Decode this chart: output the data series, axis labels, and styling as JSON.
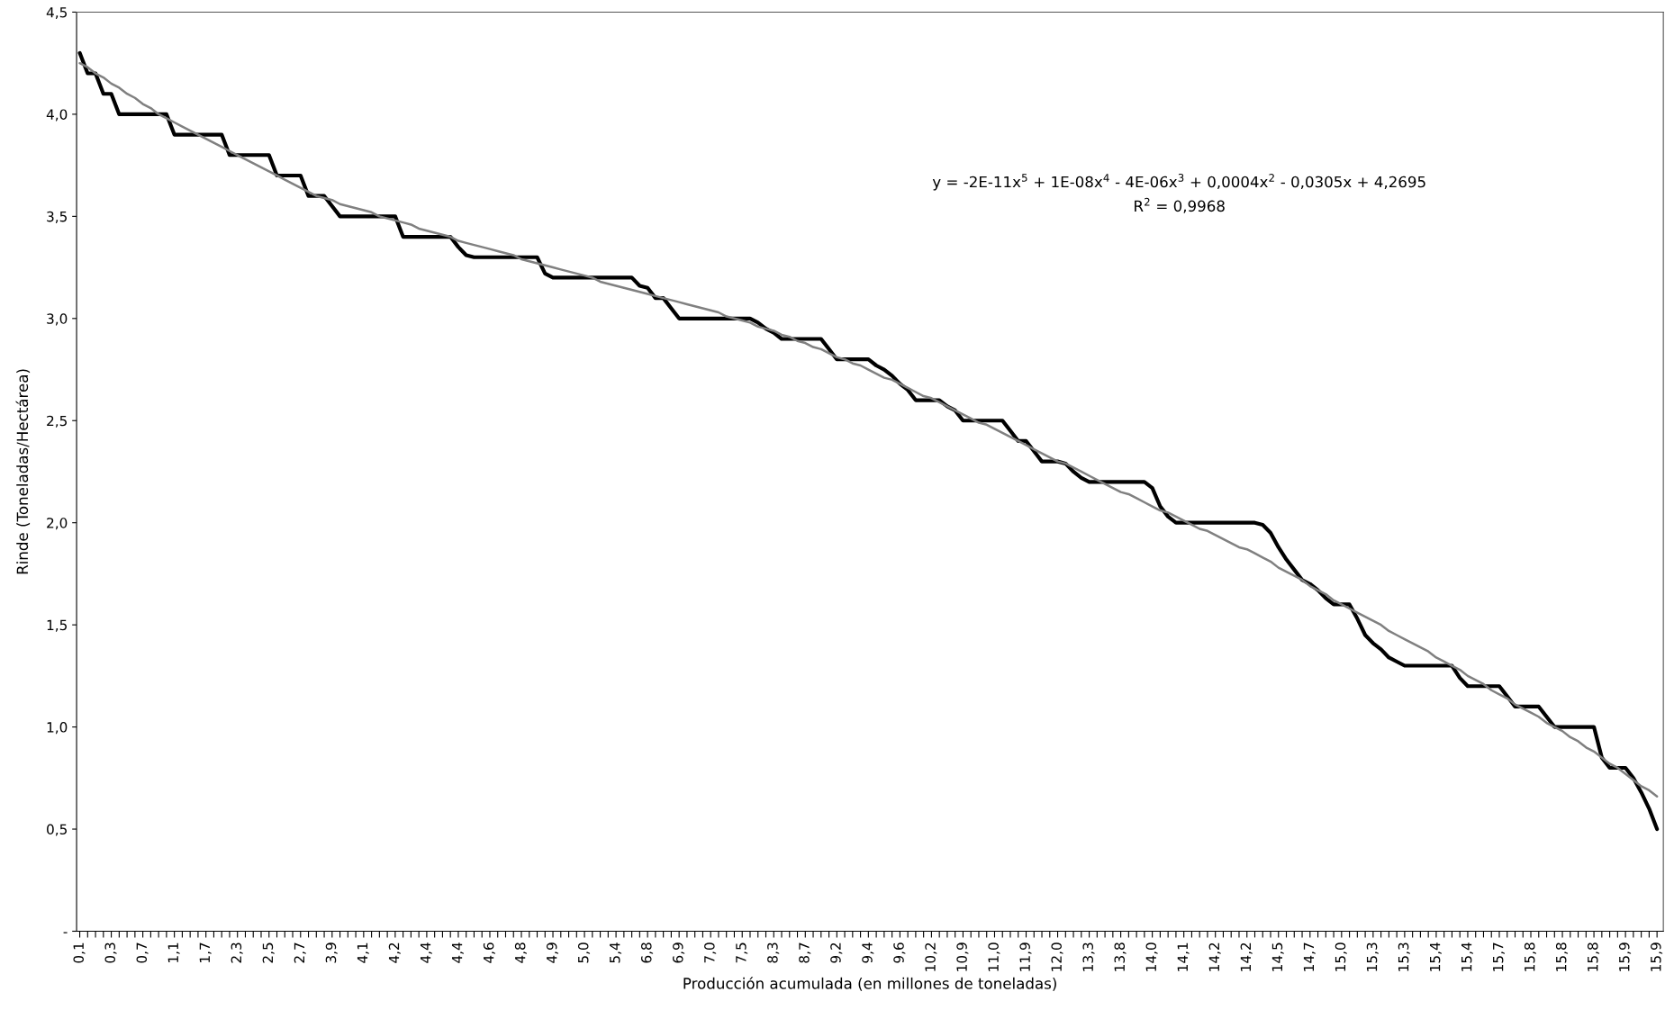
{
  "chart_data": {
    "type": "line",
    "xlabel": "Producción acumulada (en millones de toneladas)",
    "ylabel": "Rinde (Toneladas/Hectárea)",
    "categories": [
      "0,1",
      null,
      null,
      null,
      "0,3",
      null,
      null,
      null,
      "0,7",
      null,
      null,
      null,
      "1,1",
      null,
      null,
      null,
      "1,7",
      null,
      null,
      null,
      "2,3",
      null,
      null,
      null,
      "2,5",
      null,
      null,
      null,
      "2,7",
      null,
      null,
      null,
      "3,9",
      null,
      null,
      null,
      "4,1",
      null,
      null,
      null,
      "4,2",
      null,
      null,
      null,
      "4,4",
      null,
      null,
      null,
      "4,4",
      null,
      null,
      null,
      "4,6",
      null,
      null,
      null,
      "4,8",
      null,
      null,
      null,
      "4,9",
      null,
      null,
      null,
      "5,0",
      null,
      null,
      null,
      "5,4",
      null,
      null,
      null,
      "6,8",
      null,
      null,
      null,
      "6,9",
      null,
      null,
      null,
      "7,0",
      null,
      null,
      null,
      "7,5",
      null,
      null,
      null,
      "8,3",
      null,
      null,
      null,
      "8,7",
      null,
      null,
      null,
      "9,2",
      null,
      null,
      null,
      "9,4",
      null,
      null,
      null,
      "9,6",
      null,
      null,
      null,
      "10,2",
      null,
      null,
      null,
      "10,9",
      null,
      null,
      null,
      "11,0",
      null,
      null,
      null,
      "11,9",
      null,
      null,
      null,
      "12,0",
      null,
      null,
      null,
      "13,3",
      null,
      null,
      null,
      "13,8",
      null,
      null,
      null,
      "14,0",
      null,
      null,
      null,
      "14,1",
      null,
      null,
      null,
      "14,2",
      null,
      null,
      null,
      "14,2",
      null,
      null,
      null,
      "14,5",
      null,
      null,
      null,
      "14,7",
      null,
      null,
      null,
      "15,0",
      null,
      null,
      null,
      "15,3",
      null,
      null,
      null,
      "15,3",
      null,
      null,
      null,
      "15,4",
      null,
      null,
      null,
      "15,4",
      null,
      null,
      null,
      "15,7",
      null,
      null,
      null,
      "15,8",
      null,
      null,
      null,
      "15,8",
      null,
      null,
      null,
      "15,8",
      null,
      null,
      null,
      "15,9",
      null,
      null,
      null,
      "15,9"
    ],
    "series": [
      {
        "color": "#000000",
        "values": [
          4.3,
          4.2,
          4.2,
          4.1,
          4.1,
          4.0,
          4.0,
          4.0,
          4.0,
          4.0,
          4.0,
          4.0,
          3.9,
          3.9,
          3.9,
          3.9,
          3.9,
          3.9,
          3.9,
          3.8,
          3.8,
          3.8,
          3.8,
          3.8,
          3.8,
          3.7,
          3.7,
          3.7,
          3.7,
          3.6,
          3.6,
          3.6,
          3.55,
          3.5,
          3.5,
          3.5,
          3.5,
          3.5,
          3.5,
          3.5,
          3.5,
          3.4,
          3.4,
          3.4,
          3.4,
          3.4,
          3.4,
          3.4,
          3.35,
          3.31,
          3.3,
          3.3,
          3.3,
          3.3,
          3.3,
          3.3,
          3.3,
          3.3,
          3.3,
          3.22,
          3.2,
          3.2,
          3.2,
          3.2,
          3.2,
          3.2,
          3.2,
          3.2,
          3.2,
          3.2,
          3.2,
          3.16,
          3.15,
          3.1,
          3.1,
          3.05,
          3.0,
          3.0,
          3.0,
          3.0,
          3.0,
          3.0,
          3.0,
          3.0,
          3.0,
          3.0,
          2.98,
          2.95,
          2.93,
          2.9,
          2.9,
          2.9,
          2.9,
          2.9,
          2.9,
          2.85,
          2.8,
          2.8,
          2.8,
          2.8,
          2.8,
          2.77,
          2.75,
          2.72,
          2.68,
          2.65,
          2.6,
          2.6,
          2.6,
          2.6,
          2.57,
          2.55,
          2.5,
          2.5,
          2.5,
          2.5,
          2.5,
          2.5,
          2.45,
          2.4,
          2.4,
          2.35,
          2.3,
          2.3,
          2.3,
          2.29,
          2.25,
          2.22,
          2.2,
          2.2,
          2.2,
          2.2,
          2.2,
          2.2,
          2.2,
          2.2,
          2.17,
          2.08,
          2.03,
          2.0,
          2.0,
          2.0,
          2.0,
          2.0,
          2.0,
          2.0,
          2.0,
          2.0,
          2.0,
          2.0,
          1.99,
          1.95,
          1.88,
          1.82,
          1.77,
          1.72,
          1.7,
          1.67,
          1.63,
          1.6,
          1.6,
          1.6,
          1.53,
          1.45,
          1.41,
          1.38,
          1.34,
          1.32,
          1.3,
          1.3,
          1.3,
          1.3,
          1.3,
          1.3,
          1.3,
          1.24,
          1.2,
          1.2,
          1.2,
          1.2,
          1.2,
          1.15,
          1.1,
          1.1,
          1.1,
          1.1,
          1.05,
          1.0,
          1.0,
          1.0,
          1.0,
          1.0,
          1.0,
          0.85,
          0.8,
          0.8,
          0.8,
          0.75,
          0.68,
          0.6,
          0.5
        ]
      },
      {
        "color": "#808080",
        "values": [
          4.25,
          4.23,
          4.2,
          4.18,
          4.15,
          4.13,
          4.1,
          4.08,
          4.05,
          4.03,
          4.0,
          3.98,
          3.96,
          3.94,
          3.92,
          3.9,
          3.88,
          3.86,
          3.84,
          3.82,
          3.8,
          3.78,
          3.76,
          3.74,
          3.72,
          3.7,
          3.68,
          3.66,
          3.64,
          3.62,
          3.6,
          3.59,
          3.58,
          3.56,
          3.55,
          3.54,
          3.53,
          3.52,
          3.5,
          3.49,
          3.48,
          3.47,
          3.46,
          3.44,
          3.43,
          3.42,
          3.41,
          3.4,
          3.38,
          3.37,
          3.36,
          3.35,
          3.34,
          3.33,
          3.32,
          3.31,
          3.29,
          3.28,
          3.27,
          3.26,
          3.25,
          3.24,
          3.23,
          3.22,
          3.21,
          3.2,
          3.18,
          3.17,
          3.16,
          3.15,
          3.14,
          3.13,
          3.12,
          3.11,
          3.1,
          3.09,
          3.08,
          3.07,
          3.06,
          3.05,
          3.04,
          3.03,
          3.01,
          3.0,
          2.99,
          2.98,
          2.96,
          2.95,
          2.94,
          2.92,
          2.91,
          2.89,
          2.88,
          2.86,
          2.85,
          2.83,
          2.81,
          2.8,
          2.78,
          2.77,
          2.75,
          2.73,
          2.71,
          2.7,
          2.68,
          2.66,
          2.64,
          2.62,
          2.61,
          2.59,
          2.57,
          2.55,
          2.53,
          2.51,
          2.49,
          2.48,
          2.46,
          2.44,
          2.42,
          2.4,
          2.38,
          2.36,
          2.34,
          2.32,
          2.3,
          2.29,
          2.27,
          2.25,
          2.23,
          2.21,
          2.19,
          2.17,
          2.15,
          2.14,
          2.12,
          2.1,
          2.08,
          2.06,
          2.05,
          2.03,
          2.01,
          1.99,
          1.97,
          1.96,
          1.94,
          1.92,
          1.9,
          1.88,
          1.87,
          1.85,
          1.83,
          1.81,
          1.78,
          1.76,
          1.74,
          1.72,
          1.69,
          1.67,
          1.65,
          1.62,
          1.6,
          1.58,
          1.56,
          1.54,
          1.52,
          1.5,
          1.47,
          1.45,
          1.43,
          1.41,
          1.39,
          1.37,
          1.34,
          1.32,
          1.3,
          1.28,
          1.25,
          1.23,
          1.21,
          1.18,
          1.16,
          1.14,
          1.11,
          1.09,
          1.07,
          1.05,
          1.02,
          1.0,
          0.98,
          0.95,
          0.93,
          0.9,
          0.88,
          0.85,
          0.82,
          0.8,
          0.77,
          0.74,
          0.71,
          0.69,
          0.66
        ]
      }
    ],
    "ylim": [
      0,
      4.5
    ],
    "yticks": [
      {
        "value": 0,
        "label": "-"
      },
      {
        "value": 0.5,
        "label": "0,5"
      },
      {
        "value": 1,
        "label": "1,0"
      },
      {
        "value": 1.5,
        "label": "1,5"
      },
      {
        "value": 2,
        "label": "2,0"
      },
      {
        "value": 2.5,
        "label": "2,5"
      },
      {
        "value": 3,
        "label": "3,0"
      },
      {
        "value": 3.5,
        "label": "3,5"
      },
      {
        "value": 4,
        "label": "4,0"
      },
      {
        "value": 4.5,
        "label": "4,5"
      }
    ],
    "annotations": [
      "y = -2E-11x$^{5}$ + 1E-08x$^{4}$ - 4E-06x$^{3}$ + 0,0004x$^{2}$ - 0,0305x + 4,2695",
      "R$^{2}$ = 0,9968"
    ],
    "grid": false,
    "legend": false,
    "marker": "none",
    "line_style": "solid"
  }
}
